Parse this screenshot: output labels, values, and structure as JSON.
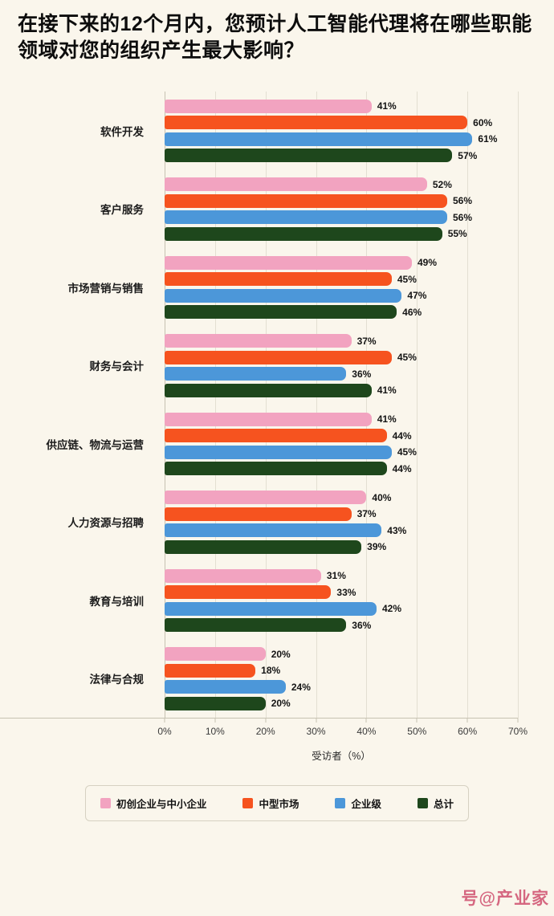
{
  "title": "在接下来的12个月内，您预计人工智能代理将在哪些职能领域对您的组织产生最大影响？",
  "chart_data": {
    "type": "bar",
    "orientation": "horizontal",
    "title": "在接下来的12个月内，您预计人工智能代理将在哪些职能领域对您的组织产生最大影响？",
    "categories": [
      "软件开发",
      "客户服务",
      "市场营销与销售",
      "财务与会计",
      "供应链、物流与运营",
      "人力资源与招聘",
      "教育与培训",
      "法律与合规"
    ],
    "series": [
      {
        "name": "初创企业与中小企业",
        "color": "#F2A3C0",
        "values": [
          41,
          52,
          49,
          37,
          41,
          40,
          31,
          20
        ]
      },
      {
        "name": "中型市场",
        "color": "#F6531F",
        "values": [
          60,
          56,
          45,
          45,
          44,
          37,
          33,
          18
        ]
      },
      {
        "name": "企业级",
        "color": "#4C97D9",
        "values": [
          61,
          56,
          47,
          36,
          45,
          43,
          42,
          24
        ]
      },
      {
        "name": "总计",
        "color": "#1E471C",
        "values": [
          57,
          55,
          46,
          41,
          44,
          39,
          36,
          20
        ]
      }
    ],
    "xlabel": "受访者（%）",
    "xlim": [
      0,
      70
    ],
    "x_ticks": [
      "0%",
      "10%",
      "20%",
      "30%",
      "40%",
      "50%",
      "60%",
      "70%"
    ],
    "value_suffix": "%",
    "grid": true,
    "legend_position": "bottom"
  },
  "watermark": "号@产业家"
}
